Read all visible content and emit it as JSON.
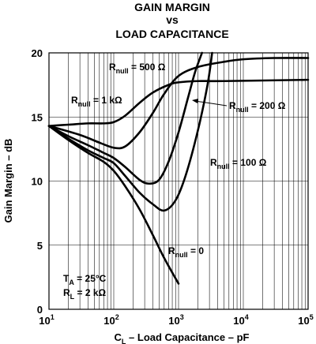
{
  "chart_data": {
    "type": "line",
    "title_lines": [
      "GAIN MARGIN",
      "vs",
      "LOAD CAPACITANCE"
    ],
    "xlabel": {
      "main": "C",
      "sub": "L",
      "rest": " – Load Capacitance – pF"
    },
    "ylabel": "Gain Margin – dB",
    "xscale": "log",
    "xlim": [
      10,
      100000
    ],
    "ylim": [
      0,
      20
    ],
    "grid": true,
    "x_ticks": [
      {
        "value": 10,
        "base": "10",
        "exp": "1"
      },
      {
        "value": 100,
        "base": "10",
        "exp": "2"
      },
      {
        "value": 1000,
        "base": "10",
        "exp": "3"
      },
      {
        "value": 10000,
        "base": "10",
        "exp": "4"
      },
      {
        "value": 100000,
        "base": "10",
        "exp": "5"
      }
    ],
    "y_ticks": [
      {
        "value": 0,
        "label": "0"
      },
      {
        "value": 5,
        "label": "5"
      },
      {
        "value": 10,
        "label": "10"
      },
      {
        "value": 15,
        "label": "15"
      },
      {
        "value": 20,
        "label": "20"
      }
    ],
    "conditions": [
      {
        "main": "T",
        "sub": "A",
        "rest": " = 25°C"
      },
      {
        "main": "R",
        "sub": "L",
        "rest": " = 2 kΩ"
      }
    ],
    "series": [
      {
        "name": "R_null = 0",
        "label": {
          "main": "R",
          "sub": "null",
          "rest": " = 0"
        },
        "points": [
          [
            10,
            14.3
          ],
          [
            20,
            13.2
          ],
          [
            40,
            12.2
          ],
          [
            70,
            11.5
          ],
          [
            100,
            10.8
          ],
          [
            150,
            9.6
          ],
          [
            250,
            7.8
          ],
          [
            400,
            5.8
          ],
          [
            600,
            4.0
          ],
          [
            1000,
            2.0
          ]
        ]
      },
      {
        "name": "R_null = 100 Ω",
        "label": {
          "main": "R",
          "sub": "null",
          "rest": " = 100 Ω"
        },
        "points": [
          [
            10,
            14.3
          ],
          [
            20,
            13.3
          ],
          [
            40,
            12.4
          ],
          [
            70,
            11.8
          ],
          [
            100,
            11.4
          ],
          [
            150,
            10.4
          ],
          [
            250,
            9.1
          ],
          [
            400,
            8.2
          ],
          [
            600,
            7.7
          ],
          [
            900,
            8.5
          ],
          [
            1300,
            10.5
          ],
          [
            2000,
            14.0
          ],
          [
            2800,
            17.5
          ],
          [
            3300,
            20.0
          ]
        ]
      },
      {
        "name": "R_null = 200 Ω",
        "label": {
          "main": "R",
          "sub": "null",
          "rest": " = 200 Ω"
        },
        "points": [
          [
            10,
            14.3
          ],
          [
            20,
            13.5
          ],
          [
            40,
            12.8
          ],
          [
            70,
            12.2
          ],
          [
            100,
            11.8
          ],
          [
            150,
            11.1
          ],
          [
            250,
            10.1
          ],
          [
            350,
            9.8
          ],
          [
            500,
            10.1
          ],
          [
            700,
            11.5
          ],
          [
            1000,
            13.8
          ],
          [
            1400,
            16.5
          ],
          [
            1800,
            18.5
          ],
          [
            2300,
            20.0
          ]
        ]
      },
      {
        "name": "R_null = 500 Ω",
        "label": {
          "main": "R",
          "sub": "null",
          "rest": " = 500 Ω"
        },
        "points": [
          [
            10,
            14.3
          ],
          [
            30,
            13.6
          ],
          [
            60,
            13.0
          ],
          [
            100,
            12.6
          ],
          [
            150,
            12.7
          ],
          [
            250,
            13.8
          ],
          [
            400,
            15.3
          ],
          [
            600,
            16.8
          ],
          [
            1000,
            18.2
          ],
          [
            2000,
            18.9
          ],
          [
            5000,
            19.3
          ],
          [
            10000,
            19.5
          ],
          [
            30000,
            19.6
          ],
          [
            100000,
            19.6
          ]
        ]
      },
      {
        "name": "R_null = 1 kΩ",
        "label": {
          "main": "R",
          "sub": "null",
          "rest": " = 1 kΩ"
        },
        "points": [
          [
            10,
            14.3
          ],
          [
            20,
            14.4
          ],
          [
            40,
            14.5
          ],
          [
            70,
            14.5
          ],
          [
            100,
            14.6
          ],
          [
            150,
            15.1
          ],
          [
            250,
            16.1
          ],
          [
            400,
            16.9
          ],
          [
            700,
            17.5
          ],
          [
            1000,
            17.7
          ],
          [
            2000,
            17.8
          ],
          [
            5000,
            17.8
          ],
          [
            100000,
            17.9
          ]
        ]
      }
    ]
  }
}
